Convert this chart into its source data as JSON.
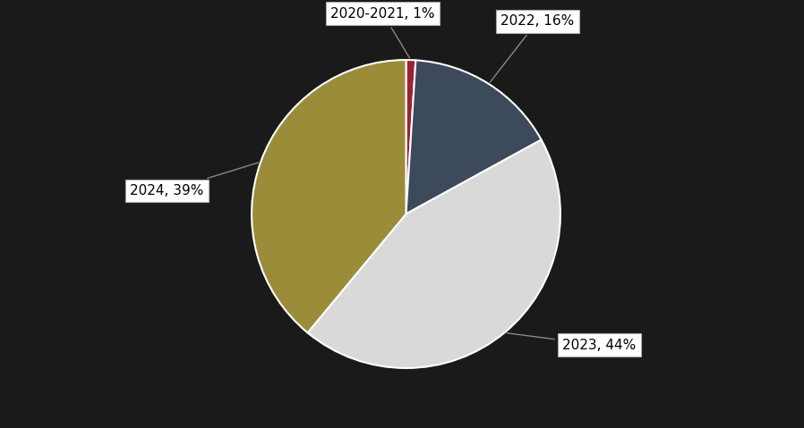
{
  "labels": [
    "2020-2021",
    "2022",
    "2023",
    "2024"
  ],
  "values": [
    1,
    16,
    44,
    39
  ],
  "colors": [
    "#9B2335",
    "#3D4A5C",
    "#D9D9D9",
    "#9B8C3A"
  ],
  "background_color": "#1a1a1a",
  "label_texts": [
    "2020-2021, 1%",
    "2022, 16%",
    "2023, 44%",
    "2024, 39%"
  ],
  "label_fontsize": 11,
  "startangle": 90
}
